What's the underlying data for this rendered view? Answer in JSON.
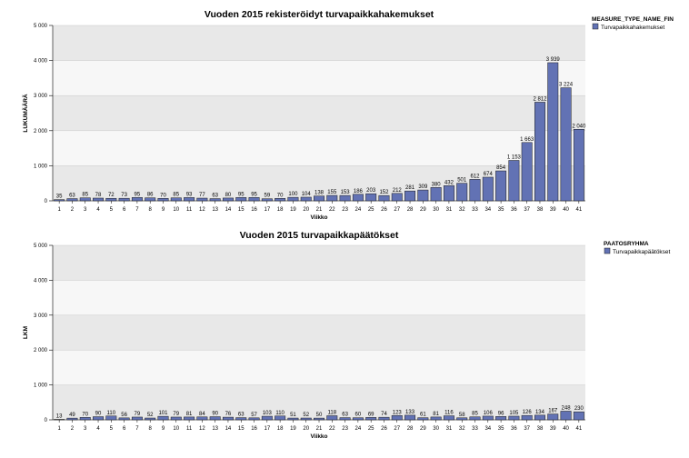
{
  "chart_data": [
    {
      "type": "bar",
      "title": "Vuoden 2015 rekisteröidyt turvapaikkahakemukset",
      "xlabel": "Viikko",
      "ylabel": "LUKUMÄÄRÄ",
      "ylim": [
        0,
        5000
      ],
      "yticks": [
        "0",
        "1 000",
        "2 000",
        "3 000",
        "4 000",
        "5 000"
      ],
      "grid": true,
      "legend_position": "top-right",
      "legend_title": "MEASURE_TYPE_NAME_FIN",
      "categories": [
        "1",
        "2",
        "3",
        "4",
        "5",
        "6",
        "7",
        "8",
        "9",
        "10",
        "11",
        "12",
        "13",
        "14",
        "15",
        "16",
        "17",
        "18",
        "19",
        "20",
        "21",
        "22",
        "23",
        "24",
        "25",
        "26",
        "27",
        "28",
        "29",
        "30",
        "31",
        "32",
        "33",
        "34",
        "35",
        "36",
        "37",
        "38",
        "39",
        "40",
        "41"
      ],
      "series": [
        {
          "name": "Turvapaikkahakemukset",
          "color": "#6272b4",
          "values": [
            35,
            63,
            85,
            78,
            72,
            73,
            95,
            86,
            70,
            85,
            93,
            77,
            63,
            80,
            95,
            95,
            59,
            70,
            100,
            104,
            138,
            155,
            153,
            186,
            203,
            152,
            212,
            281,
            309,
            380,
            432,
            501,
            612,
            674,
            854,
            1153,
            1663,
            2812,
            3939,
            3224,
            2040
          ],
          "value_labels": [
            "35",
            "63",
            "85",
            "78",
            "72",
            "73",
            "95",
            "86",
            "70",
            "85",
            "93",
            "77",
            "63",
            "80",
            "95",
            "95",
            "59",
            "70",
            "100",
            "104",
            "138",
            "155",
            "153",
            "186",
            "203",
            "152",
            "212",
            "281",
            "309",
            "380",
            "432",
            "501",
            "612",
            "674",
            "854",
            "1 153",
            "1 663",
            "2 812",
            "3 939",
            "3 224",
            "2 040"
          ]
        }
      ]
    },
    {
      "type": "bar",
      "title": "Vuoden 2015 turvapaikkapäätökset",
      "xlabel": "Viikko",
      "ylabel": "LKM",
      "ylim": [
        0,
        5000
      ],
      "yticks": [
        "0",
        "1 000",
        "2 000",
        "3 000",
        "4 000",
        "5 000"
      ],
      "grid": true,
      "legend_position": "top-right",
      "legend_title": "PAATOSRYHMA",
      "categories": [
        "1",
        "2",
        "3",
        "4",
        "5",
        "6",
        "7",
        "8",
        "9",
        "10",
        "11",
        "12",
        "13",
        "14",
        "15",
        "16",
        "17",
        "18",
        "19",
        "20",
        "21",
        "22",
        "23",
        "24",
        "25",
        "26",
        "27",
        "28",
        "29",
        "30",
        "31",
        "32",
        "33",
        "34",
        "35",
        "36",
        "37",
        "38",
        "39",
        "40",
        "41"
      ],
      "series": [
        {
          "name": "Turvapaikkapäätökset",
          "color": "#6272b4",
          "values": [
            13,
            49,
            70,
            90,
            110,
            56,
            79,
            52,
            101,
            79,
            81,
            84,
            90,
            76,
            63,
            57,
            103,
            110,
            51,
            52,
            50,
            118,
            63,
            60,
            69,
            74,
            123,
            133,
            61,
            81,
            116,
            58,
            85,
            106,
            96,
            105,
            126,
            134,
            167,
            248,
            230
          ],
          "value_labels": [
            "13",
            "49",
            "70",
            "90",
            "110",
            "56",
            "79",
            "52",
            "101",
            "79",
            "81",
            "84",
            "90",
            "76",
            "63",
            "57",
            "103",
            "110",
            "51",
            "52",
            "50",
            "118",
            "63",
            "60",
            "69",
            "74",
            "123",
            "133",
            "61",
            "81",
            "116",
            "58",
            "85",
            "106",
            "96",
            "105",
            "126",
            "134",
            "167",
            "248",
            "230"
          ]
        }
      ]
    }
  ]
}
